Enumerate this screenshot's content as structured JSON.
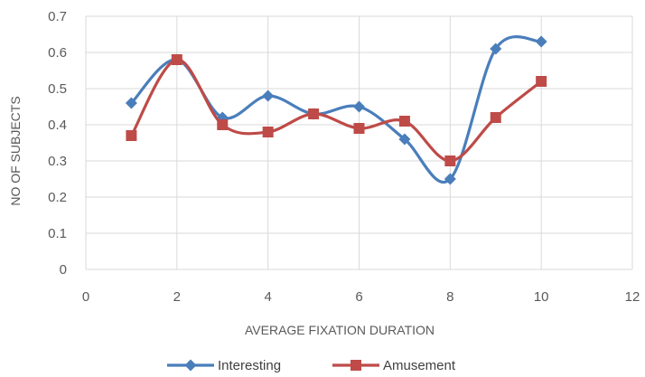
{
  "chart_data": {
    "type": "scatter",
    "title": "",
    "xlabel": "AVERAGE FIXATION DURATION",
    "ylabel": "NO OF SUBJECTS",
    "xlim": [
      0,
      12
    ],
    "ylim": [
      0,
      0.7
    ],
    "x_ticks": [
      "0",
      "2",
      "4",
      "6",
      "8",
      "10",
      "12"
    ],
    "y_ticks": [
      "0",
      "0.1",
      "0.2",
      "0.3",
      "0.4",
      "0.5",
      "0.6",
      "0.7"
    ],
    "grid": true,
    "smooth_lines": true,
    "legend_position": "bottom",
    "series": [
      {
        "name": "Interesting",
        "color": "#4a7ebb",
        "marker": "diamond",
        "x": [
          1,
          2,
          3,
          4,
          5,
          6,
          7,
          8,
          9,
          10
        ],
        "y": [
          0.46,
          0.58,
          0.42,
          0.48,
          0.43,
          0.45,
          0.36,
          0.25,
          0.61,
          0.63
        ]
      },
      {
        "name": "Amusement",
        "color": "#be4b48",
        "marker": "square",
        "x": [
          1,
          2,
          3,
          4,
          5,
          6,
          7,
          8,
          9,
          10
        ],
        "y": [
          0.37,
          0.58,
          0.4,
          0.38,
          0.43,
          0.39,
          0.41,
          0.3,
          0.42,
          0.52
        ]
      }
    ]
  }
}
